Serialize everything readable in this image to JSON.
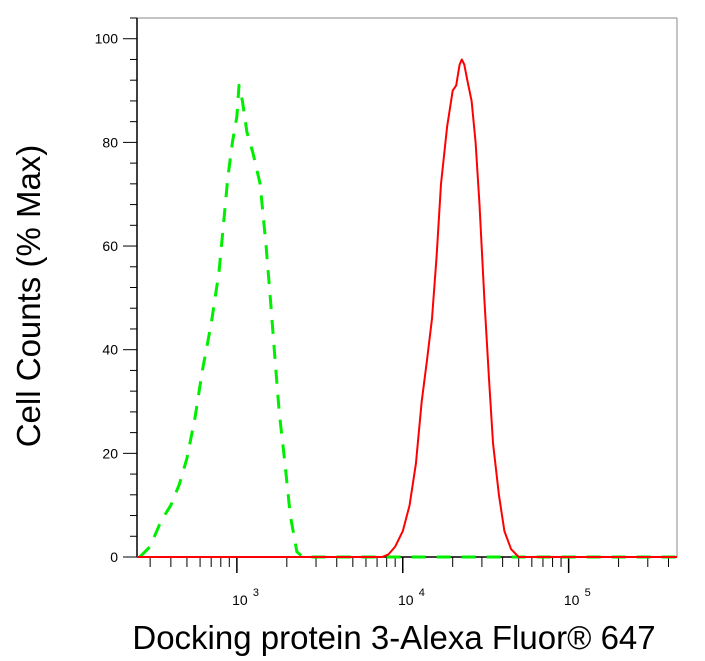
{
  "chart_data": {
    "type": "line",
    "xlabel": "Docking protein 3-Alexa Fluor® 647",
    "ylabel": "Cell Counts (% Max)",
    "x_scale": "log",
    "xlim": [
      250,
      450000
    ],
    "ylim": [
      0,
      104
    ],
    "y_ticks": [
      {
        "value": 0,
        "label": "0"
      },
      {
        "value": 20,
        "label": "20"
      },
      {
        "value": 40,
        "label": "40"
      },
      {
        "value": 60,
        "label": "60"
      },
      {
        "value": 80,
        "label": "80"
      },
      {
        "value": 100,
        "label": "100"
      }
    ],
    "x_ticks": [
      {
        "value": 1000,
        "base": "10",
        "exp": "3"
      },
      {
        "value": 10000,
        "base": "10",
        "exp": "4"
      },
      {
        "value": 100000,
        "base": "10",
        "exp": "5"
      }
    ],
    "series": [
      {
        "color": "#00ee00",
        "style": "dashed",
        "points": [
          [
            260,
            0
          ],
          [
            300,
            2
          ],
          [
            350,
            7
          ],
          [
            400,
            10
          ],
          [
            450,
            14
          ],
          [
            500,
            19
          ],
          [
            560,
            27
          ],
          [
            620,
            36
          ],
          [
            700,
            45
          ],
          [
            780,
            55
          ],
          [
            830,
            64
          ],
          [
            880,
            73
          ],
          [
            940,
            80
          ],
          [
            1000,
            85
          ],
          [
            1030,
            91
          ],
          [
            1080,
            88
          ],
          [
            1150,
            82
          ],
          [
            1250,
            78
          ],
          [
            1380,
            72
          ],
          [
            1500,
            60
          ],
          [
            1600,
            49
          ],
          [
            1700,
            38
          ],
          [
            1800,
            28
          ],
          [
            1950,
            18
          ],
          [
            2100,
            8
          ],
          [
            2300,
            1
          ],
          [
            2500,
            0
          ],
          [
            450000,
            0
          ]
        ]
      },
      {
        "color": "#ff0000",
        "style": "solid",
        "points": [
          [
            250,
            0
          ],
          [
            7500,
            0
          ],
          [
            8200,
            0.5
          ],
          [
            9000,
            2
          ],
          [
            10000,
            5
          ],
          [
            11000,
            10
          ],
          [
            12000,
            18
          ],
          [
            13000,
            30
          ],
          [
            14000,
            38
          ],
          [
            15000,
            46
          ],
          [
            16000,
            58
          ],
          [
            17000,
            72
          ],
          [
            18500,
            83
          ],
          [
            20000,
            90
          ],
          [
            21000,
            91
          ],
          [
            22000,
            95
          ],
          [
            22700,
            96
          ],
          [
            23500,
            95
          ],
          [
            24500,
            92
          ],
          [
            26000,
            88
          ],
          [
            27500,
            80
          ],
          [
            29000,
            68
          ],
          [
            31000,
            50
          ],
          [
            33000,
            35
          ],
          [
            35000,
            22
          ],
          [
            38000,
            12
          ],
          [
            41000,
            5
          ],
          [
            45000,
            1.5
          ],
          [
            50000,
            0
          ],
          [
            450000,
            0
          ]
        ]
      }
    ]
  }
}
